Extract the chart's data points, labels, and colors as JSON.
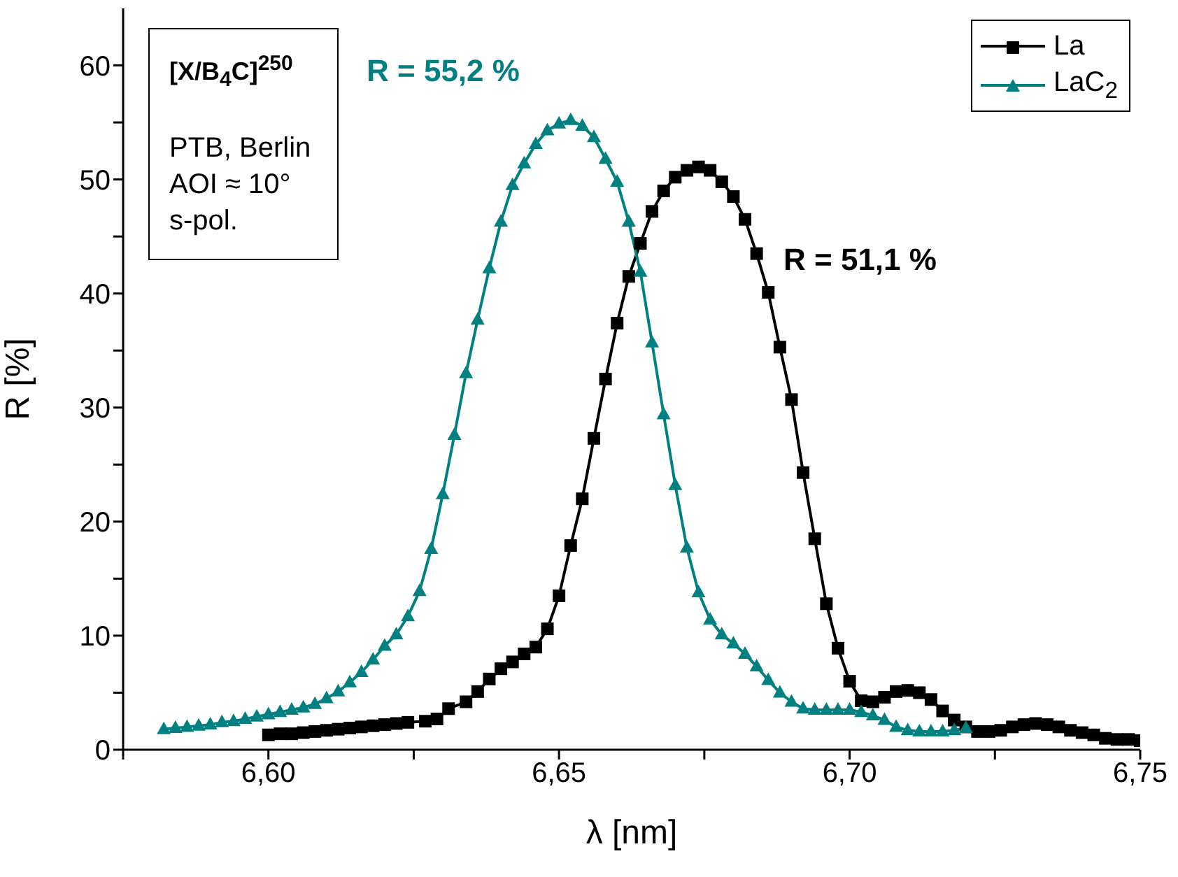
{
  "chart_data": {
    "type": "line",
    "xlabel": "λ [nm]",
    "ylabel": "R [%]",
    "xlim": [
      6.575,
      6.75
    ],
    "xticks": [
      {
        "value": 6.575,
        "label": null
      },
      {
        "value": 6.6,
        "label": "6,60"
      },
      {
        "value": 6.625,
        "label": null
      },
      {
        "value": 6.65,
        "label": "6,65"
      },
      {
        "value": 6.675,
        "label": null
      },
      {
        "value": 6.7,
        "label": "6,70"
      },
      {
        "value": 6.725,
        "label": null
      },
      {
        "value": 6.75,
        "label": "6,75"
      }
    ],
    "ylim": [
      0,
      65
    ],
    "yticks": [
      0,
      {
        "value": 5,
        "label": null
      },
      10,
      {
        "value": 15,
        "label": null
      },
      20,
      {
        "value": 25,
        "label": null
      },
      30,
      {
        "value": 35,
        "label": null
      },
      40,
      {
        "value": 45,
        "label": null
      },
      50,
      {
        "value": 55,
        "label": null
      },
      60
    ],
    "grid": false,
    "legend": "top right",
    "line_style": "solid",
    "series": [
      {
        "name": "La",
        "color": "#000000",
        "marker": "square",
        "x": [
          6.6,
          6.602,
          6.604,
          6.606,
          6.608,
          6.61,
          6.612,
          6.614,
          6.616,
          6.618,
          6.62,
          6.622,
          6.624,
          6.627,
          6.629,
          6.631,
          6.634,
          6.636,
          6.638,
          6.64,
          6.642,
          6.644,
          6.646,
          6.648,
          6.65,
          6.652,
          6.654,
          6.656,
          6.658,
          6.66,
          6.662,
          6.664,
          6.666,
          6.668,
          6.67,
          6.672,
          6.674,
          6.676,
          6.678,
          6.68,
          6.682,
          6.684,
          6.686,
          6.688,
          6.69,
          6.692,
          6.694,
          6.696,
          6.698,
          6.7,
          6.702,
          6.704,
          6.706,
          6.708,
          6.71,
          6.712,
          6.714,
          6.716,
          6.718,
          6.72,
          6.722,
          6.724,
          6.726,
          6.728,
          6.73,
          6.732,
          6.734,
          6.736,
          6.738,
          6.74,
          6.742,
          6.744,
          6.746,
          6.748,
          6.75
        ],
        "values": [
          1.3,
          1.4,
          1.4,
          1.5,
          1.6,
          1.7,
          1.8,
          1.9,
          2.0,
          2.1,
          2.2,
          2.3,
          2.4,
          2.5,
          2.7,
          3.6,
          4.2,
          5.1,
          6.2,
          7.1,
          7.7,
          8.4,
          9.0,
          10.6,
          13.5,
          17.9,
          22.0,
          27.3,
          32.5,
          37.4,
          41.5,
          44.4,
          47.2,
          49.0,
          50.2,
          50.8,
          51.1,
          50.8,
          49.8,
          48.5,
          46.5,
          43.5,
          40.1,
          35.3,
          30.7,
          24.3,
          18.5,
          12.8,
          8.9,
          6.0,
          4.3,
          4.2,
          4.6,
          5.1,
          5.2,
          5.0,
          4.4,
          3.4,
          2.6,
          2.0,
          1.6,
          1.6,
          1.7,
          2.0,
          2.2,
          2.3,
          2.2,
          2.0,
          1.7,
          1.5,
          1.3,
          1.0,
          0.9,
          0.9,
          0.8
        ]
      },
      {
        "name": "LaC$_{2}$",
        "color": "#008080",
        "marker": "triangle",
        "x": [
          6.582,
          6.584,
          6.586,
          6.588,
          6.59,
          6.592,
          6.594,
          6.596,
          6.598,
          6.6,
          6.602,
          6.604,
          6.606,
          6.608,
          6.61,
          6.612,
          6.614,
          6.616,
          6.618,
          6.62,
          6.622,
          6.624,
          6.626,
          6.628,
          6.63,
          6.632,
          6.634,
          6.636,
          6.638,
          6.64,
          6.642,
          6.644,
          6.646,
          6.648,
          6.65,
          6.652,
          6.654,
          6.656,
          6.658,
          6.66,
          6.662,
          6.664,
          6.666,
          6.668,
          6.67,
          6.672,
          6.674,
          6.676,
          6.678,
          6.68,
          6.682,
          6.684,
          6.686,
          6.688,
          6.69,
          6.692,
          6.694,
          6.696,
          6.698,
          6.7,
          6.702,
          6.704,
          6.706,
          6.708,
          6.71,
          6.712,
          6.714,
          6.716,
          6.718,
          6.72
        ],
        "values": [
          1.8,
          1.9,
          2.0,
          2.1,
          2.2,
          2.4,
          2.5,
          2.7,
          2.9,
          3.1,
          3.3,
          3.5,
          3.7,
          4.0,
          4.5,
          5.1,
          5.9,
          6.8,
          7.9,
          9.1,
          10.1,
          11.7,
          13.9,
          17.6,
          22.4,
          27.6,
          33.0,
          37.7,
          42.2,
          46.3,
          49.5,
          51.4,
          53.1,
          54.3,
          54.9,
          55.2,
          54.7,
          53.7,
          51.8,
          49.8,
          46.3,
          41.9,
          35.7,
          29.4,
          23.2,
          17.7,
          13.8,
          11.4,
          10.1,
          9.3,
          8.4,
          7.3,
          6.1,
          5.0,
          4.2,
          3.6,
          3.5,
          3.5,
          3.5,
          3.5,
          3.3,
          3.0,
          2.6,
          2.0,
          1.7,
          1.6,
          1.6,
          1.6,
          1.7,
          1.9
        ]
      }
    ],
    "annotations": [
      "[X/B$_{4}$C]$^{250}$",
      "PTB, Berlin",
      "AOI ≈ 10°",
      "s-pol.",
      "R = 55,2 %",
      "R = 51,1 %"
    ]
  }
}
